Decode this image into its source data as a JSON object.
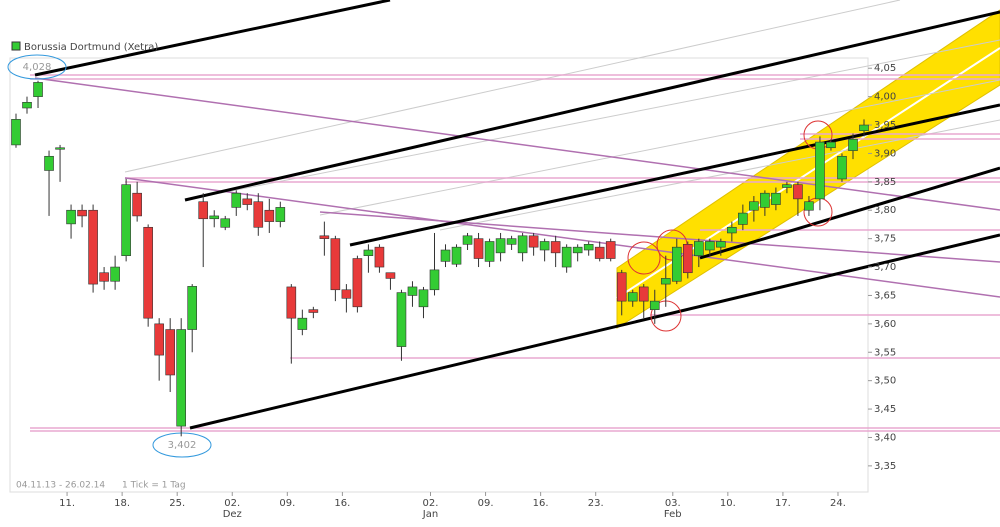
{
  "chart_data": {
    "type": "candlestick",
    "series": [
      {
        "name": "Borussia Dortmund (Xetra)",
        "up_color": "#33cc33",
        "down_color": "#e83a3a",
        "open": [
          3.915,
          3.98,
          4.0,
          3.87,
          3.91,
          3.776,
          3.8,
          3.8,
          3.69,
          3.675,
          3.72,
          3.83,
          3.77,
          3.6,
          3.59,
          3.42,
          3.59,
          3.815,
          3.785,
          3.77,
          3.805,
          3.82,
          3.815,
          3.8,
          3.78,
          3.665,
          3.59,
          3.625,
          3.755,
          3.75,
          3.66,
          3.715,
          3.72,
          3.735,
          3.69,
          3.56,
          3.65,
          3.63,
          3.66,
          3.71,
          3.705,
          3.74,
          3.75,
          3.71,
          3.725,
          3.74,
          3.725,
          3.755,
          3.73,
          3.745,
          3.7,
          3.725,
          3.73,
          3.735,
          3.745,
          3.69,
          3.64,
          3.665,
          3.625,
          3.67,
          3.675,
          3.74,
          3.72,
          3.73,
          3.735,
          3.76,
          3.775,
          3.8,
          3.805,
          3.81,
          3.84,
          3.845,
          3.8,
          3.82,
          3.91,
          3.855,
          3.905,
          3.94
        ],
        "high": [
          3.97,
          4.0,
          4.028,
          3.905,
          3.915,
          3.81,
          3.81,
          3.81,
          3.7,
          3.72,
          3.855,
          3.85,
          3.775,
          3.61,
          3.61,
          3.61,
          3.67,
          3.83,
          3.8,
          3.79,
          3.835,
          3.83,
          3.83,
          3.82,
          3.815,
          3.67,
          3.625,
          3.63,
          3.78,
          3.755,
          3.67,
          3.72,
          3.74,
          3.74,
          3.69,
          3.66,
          3.675,
          3.665,
          3.76,
          3.74,
          3.74,
          3.76,
          3.76,
          3.75,
          3.76,
          3.755,
          3.76,
          3.76,
          3.75,
          3.755,
          3.74,
          3.74,
          3.745,
          3.745,
          3.75,
          3.695,
          3.66,
          3.67,
          3.66,
          3.72,
          3.75,
          3.745,
          3.75,
          3.75,
          3.75,
          3.78,
          3.81,
          3.825,
          3.835,
          3.84,
          3.85,
          3.85,
          3.825,
          3.93,
          3.925,
          3.9,
          3.935,
          3.96
        ],
        "low": [
          3.91,
          3.97,
          3.98,
          3.79,
          3.85,
          3.75,
          3.77,
          3.655,
          3.66,
          3.66,
          3.71,
          3.78,
          3.595,
          3.5,
          3.48,
          3.402,
          3.55,
          3.7,
          3.77,
          3.765,
          3.79,
          3.8,
          3.755,
          3.76,
          3.77,
          3.53,
          3.58,
          3.61,
          3.72,
          3.64,
          3.62,
          3.62,
          3.69,
          3.69,
          3.66,
          3.535,
          3.63,
          3.61,
          3.65,
          3.7,
          3.7,
          3.73,
          3.7,
          3.7,
          3.71,
          3.73,
          3.71,
          3.72,
          3.71,
          3.7,
          3.69,
          3.71,
          3.72,
          3.71,
          3.71,
          3.615,
          3.63,
          3.61,
          3.6,
          3.63,
          3.67,
          3.68,
          3.7,
          3.72,
          3.72,
          3.745,
          3.765,
          3.78,
          3.79,
          3.8,
          3.83,
          3.79,
          3.79,
          3.8,
          3.905,
          3.85,
          3.89,
          3.93
        ],
        "close": [
          3.96,
          3.99,
          4.025,
          3.895,
          3.91,
          3.8,
          3.79,
          3.67,
          3.675,
          3.7,
          3.845,
          3.79,
          3.61,
          3.545,
          3.51,
          3.59,
          3.666,
          3.785,
          3.79,
          3.785,
          3.83,
          3.81,
          3.77,
          3.78,
          3.805,
          3.61,
          3.61,
          3.62,
          3.75,
          3.66,
          3.645,
          3.63,
          3.73,
          3.7,
          3.68,
          3.655,
          3.665,
          3.66,
          3.695,
          3.73,
          3.735,
          3.755,
          3.715,
          3.745,
          3.75,
          3.75,
          3.755,
          3.735,
          3.745,
          3.725,
          3.735,
          3.735,
          3.74,
          3.715,
          3.715,
          3.64,
          3.655,
          3.64,
          3.64,
          3.68,
          3.735,
          3.69,
          3.745,
          3.745,
          3.745,
          3.77,
          3.795,
          3.815,
          3.83,
          3.83,
          3.845,
          3.82,
          3.815,
          3.92,
          3.92,
          3.895,
          3.925,
          3.95
        ]
      }
    ],
    "categories": [
      null,
      null,
      null,
      null,
      null,
      "11.",
      null,
      null,
      null,
      null,
      "18.",
      null,
      null,
      null,
      null,
      "25.",
      null,
      null,
      null,
      null,
      "02.",
      null,
      null,
      null,
      null,
      "09.",
      null,
      null,
      null,
      null,
      "16.",
      null,
      null,
      null,
      null,
      null,
      null,
      null,
      "02.",
      null,
      null,
      null,
      null,
      "09.",
      null,
      null,
      null,
      null,
      "16.",
      null,
      null,
      null,
      null,
      "23.",
      null,
      null,
      null,
      null,
      null,
      null,
      "03.",
      null,
      null,
      null,
      null,
      "10.",
      null,
      null,
      null,
      null,
      "17.",
      null,
      null,
      null,
      null,
      "24.",
      null,
      null
    ],
    "month_labels": [
      "Dez",
      "Jan",
      "Feb"
    ],
    "ylim": [
      3.304,
      4.068
    ],
    "yticks": [
      {
        "value": 3.35,
        "label": "3,35"
      },
      {
        "value": 3.4,
        "label": "3,40"
      },
      {
        "value": 3.45,
        "label": "3,45"
      },
      {
        "value": 3.5,
        "label": "3,50"
      },
      {
        "value": 3.55,
        "label": "3,55"
      },
      {
        "value": 3.6,
        "label": "3,60"
      },
      {
        "value": 3.65,
        "label": "3,65"
      },
      {
        "value": 3.7,
        "label": "3,70"
      },
      {
        "value": 3.75,
        "label": "3,75"
      },
      {
        "value": 3.8,
        "label": "3,80"
      },
      {
        "value": 3.85,
        "label": "3,85"
      },
      {
        "value": 3.9,
        "label": "3,90"
      },
      {
        "value": 3.95,
        "label": "3,95"
      },
      {
        "value": 4.0,
        "label": "4,00"
      },
      {
        "value": 4.05,
        "label": "4,05"
      }
    ],
    "annotations": {
      "high": "4,028",
      "low": "3,402",
      "period": "04.11.13 - 26.02.14",
      "tick": "1 Tick = 1 Tag"
    }
  }
}
